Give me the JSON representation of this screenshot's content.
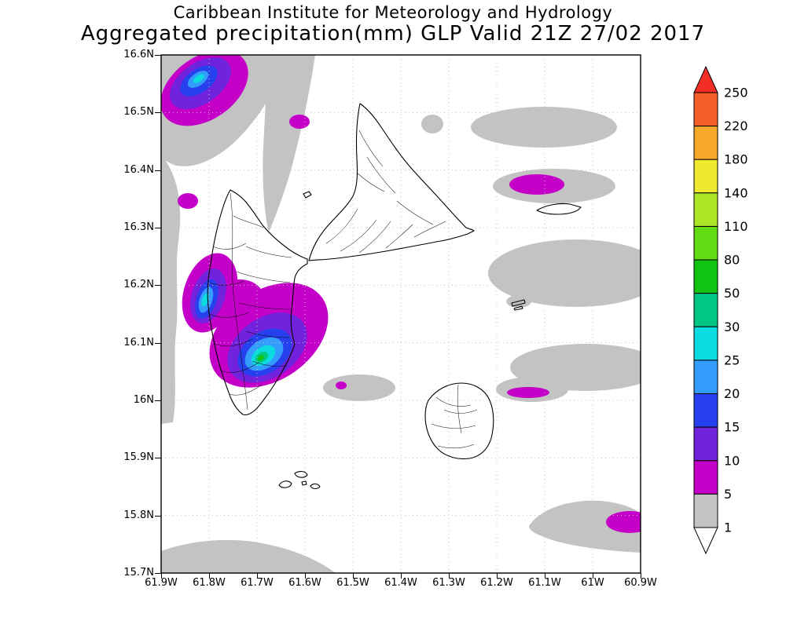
{
  "title": {
    "line1": "Caribbean Institute for Meteorology and Hydrology",
    "line2": "Aggregated precipitation(mm) GLP Valid 21Z 27/02 2017"
  },
  "axes": {
    "lat_ticks": [
      "16.6N",
      "16.5N",
      "16.4N",
      "16.3N",
      "16.2N",
      "16.1N",
      "16N",
      "15.9N",
      "15.8N",
      "15.7N"
    ],
    "lon_ticks": [
      "61.9W",
      "61.8W",
      "61.7W",
      "61.6W",
      "61.5W",
      "61.4W",
      "61.3W",
      "61.2W",
      "61.1W",
      "61W",
      "60.9W"
    ]
  },
  "colorbar": {
    "levels": [
      "250",
      "220",
      "180",
      "140",
      "110",
      "80",
      "50",
      "30",
      "25",
      "20",
      "15",
      "10",
      "5",
      "1"
    ],
    "segment_colors": [
      "orangered",
      "orange",
      "yellow",
      "yellowgreen",
      "brightgreen",
      "green",
      "teal",
      "cyan",
      "lightblue",
      "blue",
      "violet",
      "magenta",
      "gray"
    ],
    "top_arrow_color": "red",
    "bottom_arrow_color": "white"
  },
  "palette": {
    "red": "#f32e26",
    "orangered": "#f65f28",
    "orange": "#f7a92a",
    "yellow": "#efea2e",
    "yellowgreen": "#aee627",
    "brightgreen": "#63dc14",
    "green": "#12c412",
    "teal": "#00c882",
    "cyan": "#0cdbe0",
    "lightblue": "#339cfc",
    "blue": "#2640ee",
    "violet": "#7122dc",
    "magenta": "#c400c8",
    "gray": "#c3c3c3",
    "white": "#ffffff"
  }
}
